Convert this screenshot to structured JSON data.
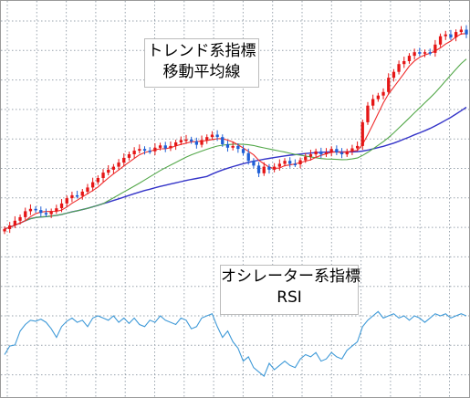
{
  "panels": {
    "trend": {
      "title": "トレンド系指標",
      "subtitle": "移動平均線"
    },
    "oscillator": {
      "title": "オシレーター系指標",
      "subtitle": "RSI"
    }
  },
  "colors": {
    "bull_candle": "#e51616",
    "bear_candle": "#1f5fd6",
    "short_ma": "#ef2b2b",
    "mid_ma": "#54a84a",
    "long_ma": "#3434c8",
    "rsi": "#3f9ad8",
    "grid": "#9aa4ae"
  },
  "chart_data": [
    {
      "type": "candlestick",
      "name": "price",
      "x": [
        0,
        1,
        2,
        3,
        4,
        5,
        6,
        7,
        8,
        9,
        10,
        11,
        12,
        13,
        14,
        15,
        16,
        17,
        18,
        19,
        20,
        21,
        22,
        23,
        24,
        25,
        26,
        27,
        28,
        29,
        30,
        31,
        32,
        33,
        34,
        35,
        36,
        37,
        38,
        39,
        40,
        41,
        42,
        43,
        44,
        45,
        46,
        47,
        48,
        49,
        50,
        51,
        52,
        53,
        54,
        55,
        56,
        57,
        58,
        59,
        60,
        61,
        62,
        63,
        64,
        65,
        66,
        67,
        68,
        69,
        70,
        71,
        72,
        73,
        74,
        75,
        76,
        77,
        78,
        79,
        80,
        81,
        82,
        83,
        84,
        85,
        86,
        87,
        88,
        89
      ],
      "close": [
        3.4,
        4.0,
        4.8,
        5.4,
        6.4,
        6.8,
        6.6,
        6.1,
        5.9,
        6.4,
        6.9,
        7.7,
        8.6,
        9.1,
        9.0,
        9.7,
        10.4,
        11.3,
        12.0,
        12.9,
        13.4,
        13.9,
        14.6,
        15.4,
        16.0,
        16.6,
        16.9,
        16.6,
        16.5,
        17.1,
        17.5,
        17.0,
        17.4,
        18.0,
        18.4,
        18.5,
        18.2,
        17.6,
        18.4,
        18.9,
        19.3,
        18.9,
        17.7,
        17.1,
        17.4,
        16.9,
        16.2,
        14.9,
        14.1,
        12.8,
        13.9,
        13.4,
        13.9,
        14.4,
        14.9,
        14.4,
        14.3,
        15.0,
        15.6,
        16.0,
        16.5,
        16.0,
        16.3,
        16.9,
        16.3,
        16.0,
        16.5,
        17.0,
        17.4,
        21.4,
        24.2,
        25.3,
        25.9,
        26.5,
        28.9,
        29.9,
        31.2,
        31.7,
        32.6,
        33.2,
        33.0,
        33.2,
        33.1,
        34.5,
        35.9,
        36.2,
        35.7,
        36.6,
        37.0,
        36.2
      ],
      "open": [
        3.0,
        3.4,
        4.0,
        4.8,
        5.4,
        6.4,
        6.8,
        6.6,
        6.1,
        5.9,
        6.4,
        6.9,
        7.7,
        8.6,
        9.1,
        9.0,
        9.7,
        10.4,
        11.3,
        12.0,
        12.9,
        13.4,
        13.9,
        14.6,
        15.4,
        16.0,
        16.6,
        16.9,
        16.6,
        16.5,
        17.1,
        17.5,
        17.0,
        17.4,
        18.0,
        18.4,
        18.5,
        18.2,
        17.6,
        18.4,
        18.9,
        19.3,
        18.9,
        17.7,
        17.1,
        17.4,
        16.9,
        16.2,
        14.9,
        14.1,
        12.8,
        13.9,
        13.4,
        13.9,
        14.4,
        14.9,
        14.4,
        14.3,
        15.0,
        15.6,
        16.0,
        16.5,
        16.0,
        16.3,
        16.9,
        16.3,
        16.0,
        16.5,
        17.0,
        17.4,
        21.4,
        24.2,
        25.3,
        25.9,
        26.5,
        28.9,
        29.9,
        31.2,
        31.7,
        32.6,
        33.2,
        33.0,
        33.2,
        33.1,
        34.5,
        35.9,
        36.2,
        35.7,
        36.6,
        37.0
      ],
      "ylim": [
        0,
        40
      ]
    },
    {
      "type": "line",
      "name": "rsi",
      "x": [
        0,
        1,
        2,
        3,
        4,
        5,
        6,
        7,
        8,
        9,
        10,
        11,
        12,
        13,
        14,
        15,
        16,
        17,
        18,
        19,
        20,
        21,
        22,
        23,
        24,
        25,
        26,
        27,
        28,
        29,
        30,
        31,
        32,
        33,
        34,
        35,
        36,
        37,
        38,
        39,
        40,
        41,
        42,
        43,
        44,
        45,
        46,
        47,
        48,
        49,
        50,
        51,
        52,
        53,
        54,
        55,
        56,
        57,
        58,
        59,
        60,
        61,
        62,
        63,
        64,
        65,
        66,
        67,
        68,
        69,
        70,
        71,
        72,
        73,
        74,
        75,
        76,
        77,
        78,
        79,
        80,
        81,
        82,
        83,
        84,
        85,
        86,
        87,
        88,
        89
      ],
      "values": [
        36,
        44,
        45,
        58,
        64,
        68,
        67,
        69,
        66,
        60,
        52,
        62,
        67,
        70,
        66,
        68,
        62,
        70,
        72,
        70,
        68,
        72,
        66,
        70,
        65,
        70,
        64,
        62,
        68,
        66,
        72,
        68,
        66,
        64,
        70,
        68,
        60,
        62,
        70,
        72,
        74,
        62,
        52,
        58,
        48,
        42,
        30,
        34,
        24,
        20,
        16,
        28,
        22,
        26,
        30,
        26,
        24,
        32,
        36,
        34,
        38,
        30,
        32,
        38,
        34,
        32,
        40,
        44,
        48,
        62,
        68,
        72,
        76,
        70,
        72,
        74,
        70,
        72,
        68,
        72,
        70,
        66,
        70,
        74,
        72,
        74,
        70,
        72,
        74,
        72
      ],
      "ylim": [
        0,
        100
      ]
    }
  ]
}
